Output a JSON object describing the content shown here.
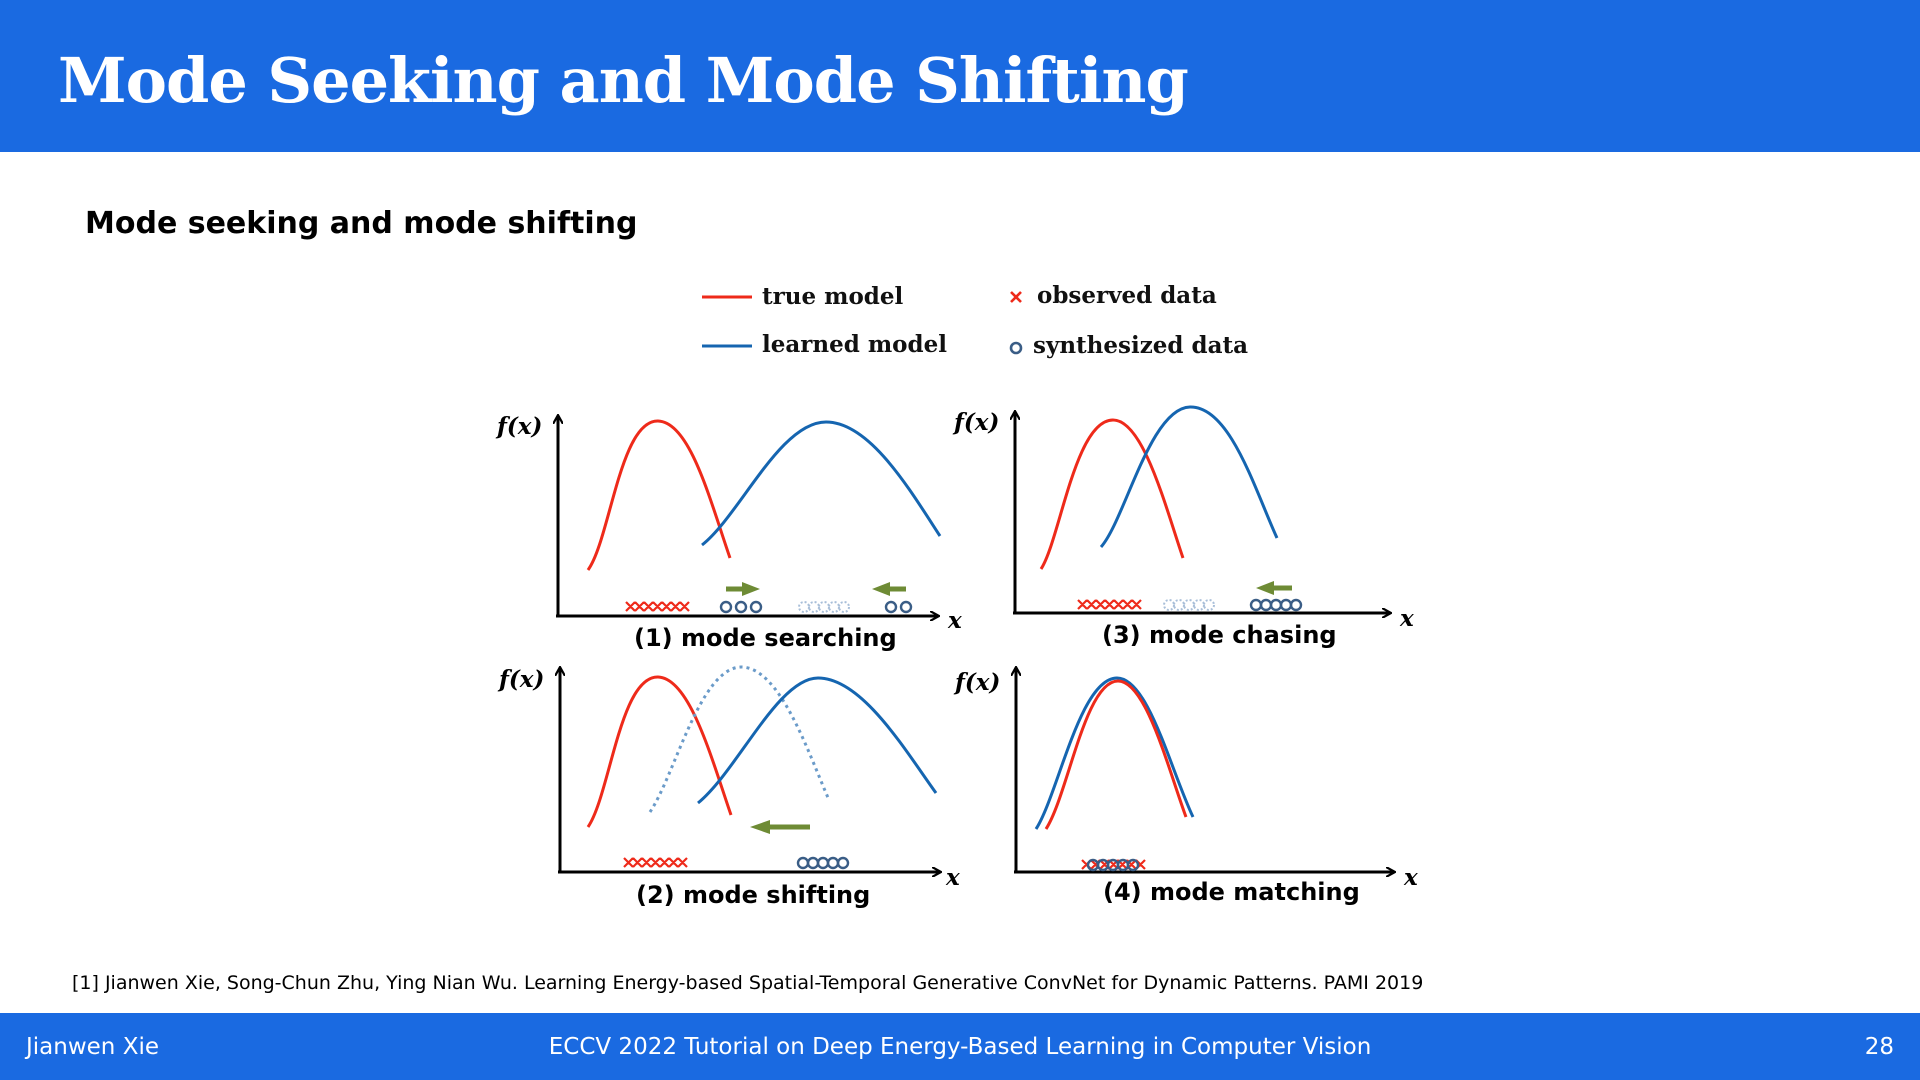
{
  "slide": {
    "title": "Mode Seeking and Mode Shifting",
    "subtitle": "Mode seeking and mode shifting",
    "reference": "[1] Jianwen Xie, Song-Chun Zhu, Ying Nian Wu. Learning Energy-based Spatial-Temporal Generative ConvNet for Dynamic Patterns. PAMI 2019"
  },
  "legend": {
    "true_model": "true model",
    "learned_model": "learned model",
    "observed_data": "observed data",
    "synthesized_data": "synthesized data"
  },
  "axis": {
    "y": "f(x)",
    "x": "x"
  },
  "panels": {
    "p1": "(1) mode searching",
    "p2": "(2) mode shifting",
    "p3": "(3) mode chasing",
    "p4": "(4) mode matching"
  },
  "footer": {
    "author": "Jianwen Xie",
    "event": "ECCV 2022 Tutorial on Deep Energy-Based Learning in Computer Vision",
    "page": "28"
  },
  "colors": {
    "header_blue": "#1a6ae1",
    "true_model_red": "#ee2a1a",
    "learned_model_blue": "#1565b0",
    "synthesized_circle": "#3a5d86",
    "arrow_green": "#6e8b35"
  }
}
